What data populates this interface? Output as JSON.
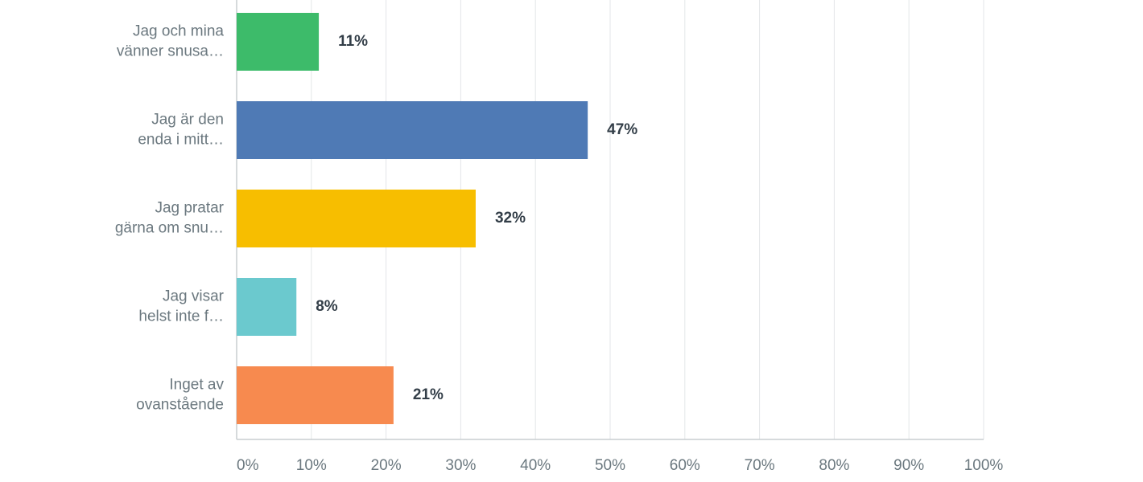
{
  "chart_data": {
    "type": "hbar",
    "categories": [
      [
        "Jag och mina",
        "vänner snusa…"
      ],
      [
        "Jag är den",
        "enda i mitt…"
      ],
      [
        "Jag pratar",
        "gärna om snu…"
      ],
      [
        "Jag visar",
        "helst inte f…"
      ],
      [
        "Inget av",
        "ovanstående"
      ]
    ],
    "values": [
      11,
      47,
      32,
      8,
      21
    ],
    "value_labels": [
      "11%",
      "47%",
      "32%",
      "8%",
      "21%"
    ],
    "colors": [
      "#3dbb6a",
      "#4f7ab5",
      "#f7be00",
      "#6bc9ce",
      "#f78a4f"
    ],
    "xlim": [
      0,
      100
    ],
    "xticks": [
      {
        "value": 0,
        "label": "0%"
      },
      {
        "value": 10,
        "label": "10%"
      },
      {
        "value": 20,
        "label": "20%"
      },
      {
        "value": 30,
        "label": "30%"
      },
      {
        "value": 40,
        "label": "40%"
      },
      {
        "value": 50,
        "label": "50%"
      },
      {
        "value": 60,
        "label": "60%"
      },
      {
        "value": 70,
        "label": "70%"
      },
      {
        "value": 80,
        "label": "80%"
      },
      {
        "value": 90,
        "label": "90%"
      },
      {
        "value": 100,
        "label": "100%"
      }
    ],
    "grid": true
  }
}
